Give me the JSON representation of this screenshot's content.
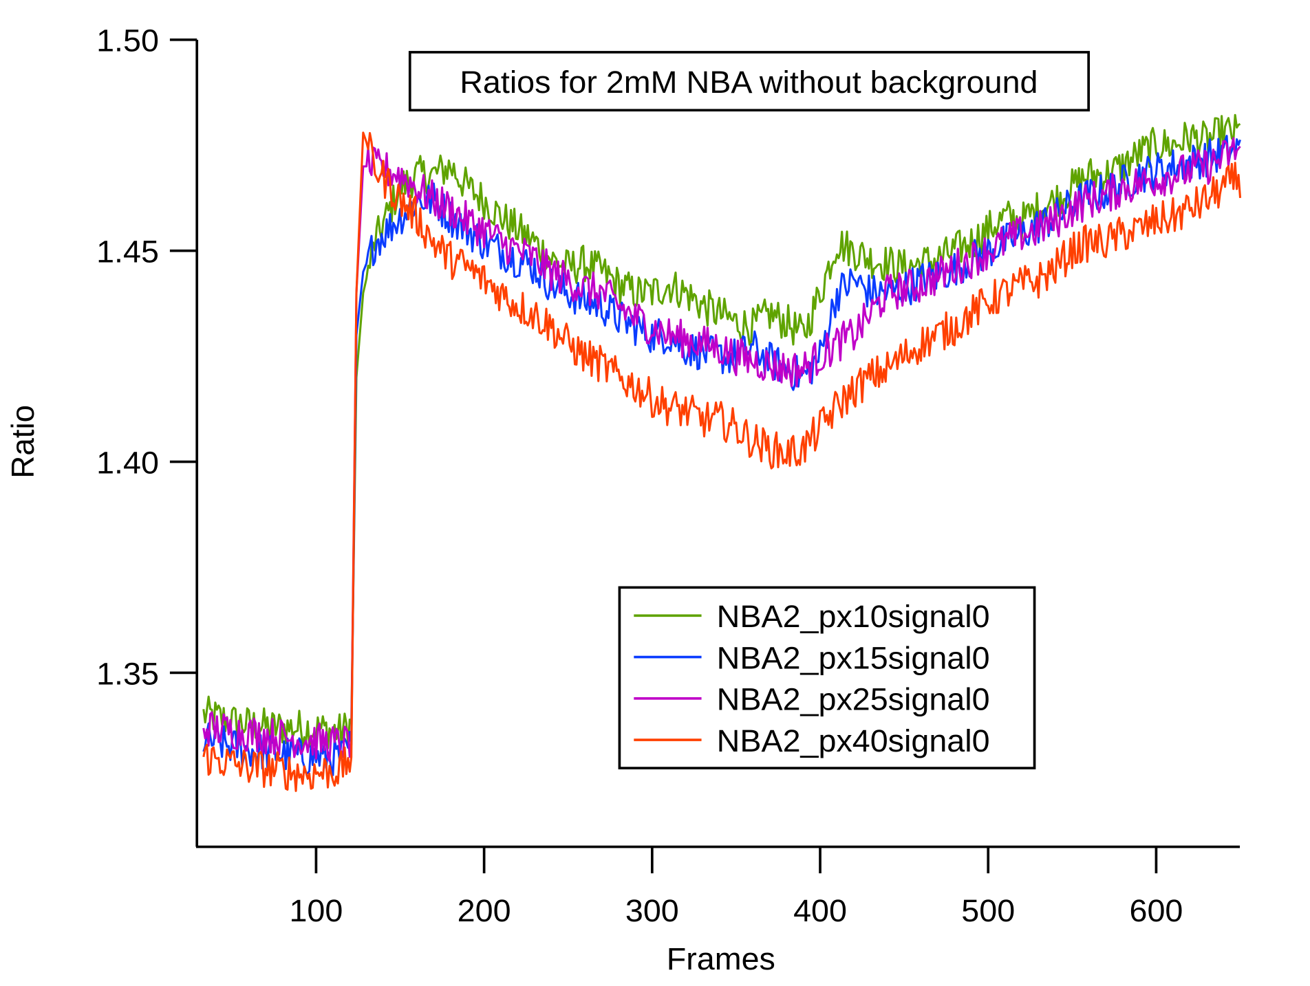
{
  "chart_data": {
    "type": "line",
    "title": "Ratios for 2mM NBA without background",
    "xlabel": "Frames",
    "ylabel": "Ratio",
    "xlim": [
      29,
      650
    ],
    "ylim": [
      1.3088,
      1.5
    ],
    "xticks": [
      "100",
      "200",
      "300",
      "400",
      "500",
      "600"
    ],
    "xtick_values": [
      100,
      200,
      300,
      400,
      500,
      600
    ],
    "yticks": [
      "1.35",
      "1.40",
      "1.45",
      "1.50"
    ],
    "ytick_values": [
      1.35,
      1.4,
      1.45,
      1.5
    ],
    "grid": false,
    "legend_position": "lower-right",
    "x": [
      35,
      55,
      75,
      95,
      115,
      121,
      124,
      128,
      135,
      150,
      160,
      170,
      180,
      190,
      200,
      210,
      220,
      230,
      240,
      250,
      260,
      270,
      280,
      290,
      300,
      310,
      320,
      330,
      340,
      350,
      360,
      370,
      380,
      390,
      400,
      410,
      420,
      430,
      440,
      450,
      460,
      470,
      480,
      490,
      500,
      510,
      520,
      530,
      540,
      550,
      560,
      570,
      580,
      590,
      600,
      610,
      620,
      630,
      640,
      648
    ],
    "series": [
      {
        "name": "NBA2_px10signal0",
        "color": "#5fa300",
        "values": [
          1.34,
          1.338,
          1.337,
          1.337,
          1.336,
          1.338,
          1.42,
          1.44,
          1.452,
          1.465,
          1.468,
          1.468,
          1.47,
          1.465,
          1.462,
          1.458,
          1.455,
          1.452,
          1.448,
          1.446,
          1.447,
          1.445,
          1.442,
          1.44,
          1.44,
          1.442,
          1.44,
          1.437,
          1.435,
          1.433,
          1.432,
          1.435,
          1.433,
          1.43,
          1.44,
          1.452,
          1.45,
          1.448,
          1.447,
          1.446,
          1.447,
          1.448,
          1.45,
          1.452,
          1.455,
          1.458,
          1.457,
          1.46,
          1.462,
          1.465,
          1.468,
          1.468,
          1.47,
          1.473,
          1.475,
          1.475,
          1.477,
          1.476,
          1.478,
          1.478
        ]
      },
      {
        "name": "NBA2_px15signal0",
        "color": "#0a3cff",
        "values": [
          1.334,
          1.332,
          1.331,
          1.33,
          1.33,
          1.333,
          1.43,
          1.445,
          1.452,
          1.458,
          1.462,
          1.462,
          1.458,
          1.455,
          1.452,
          1.45,
          1.448,
          1.446,
          1.442,
          1.44,
          1.438,
          1.437,
          1.434,
          1.432,
          1.43,
          1.43,
          1.427,
          1.426,
          1.425,
          1.425,
          1.427,
          1.424,
          1.422,
          1.42,
          1.425,
          1.44,
          1.443,
          1.44,
          1.44,
          1.441,
          1.443,
          1.444,
          1.446,
          1.448,
          1.45,
          1.452,
          1.454,
          1.456,
          1.458,
          1.461,
          1.463,
          1.464,
          1.466,
          1.468,
          1.469,
          1.47,
          1.471,
          1.472,
          1.473,
          1.474
        ]
      },
      {
        "name": "NBA2_px25signal0",
        "color": "#c000c8",
        "values": [
          1.337,
          1.336,
          1.335,
          1.334,
          1.333,
          1.334,
          1.44,
          1.47,
          1.47,
          1.468,
          1.465,
          1.462,
          1.46,
          1.457,
          1.455,
          1.452,
          1.45,
          1.448,
          1.445,
          1.443,
          1.441,
          1.44,
          1.437,
          1.434,
          1.432,
          1.43,
          1.429,
          1.428,
          1.427,
          1.425,
          1.424,
          1.423,
          1.422,
          1.422,
          1.425,
          1.428,
          1.43,
          1.435,
          1.44,
          1.441,
          1.442,
          1.444,
          1.446,
          1.448,
          1.45,
          1.452,
          1.454,
          1.455,
          1.457,
          1.46,
          1.462,
          1.463,
          1.465,
          1.466,
          1.467,
          1.468,
          1.469,
          1.47,
          1.472,
          1.474
        ]
      },
      {
        "name": "NBA2_px40signal0",
        "color": "#ff4000",
        "values": [
          1.33,
          1.328,
          1.327,
          1.326,
          1.327,
          1.33,
          1.44,
          1.478,
          1.47,
          1.462,
          1.458,
          1.452,
          1.448,
          1.446,
          1.443,
          1.44,
          1.437,
          1.435,
          1.432,
          1.428,
          1.425,
          1.423,
          1.42,
          1.418,
          1.415,
          1.413,
          1.412,
          1.41,
          1.41,
          1.408,
          1.405,
          1.403,
          1.402,
          1.403,
          1.408,
          1.413,
          1.417,
          1.42,
          1.422,
          1.425,
          1.428,
          1.43,
          1.432,
          1.435,
          1.438,
          1.44,
          1.442,
          1.443,
          1.446,
          1.45,
          1.452,
          1.452,
          1.454,
          1.455,
          1.457,
          1.458,
          1.46,
          1.462,
          1.465,
          1.467
        ]
      }
    ]
  }
}
